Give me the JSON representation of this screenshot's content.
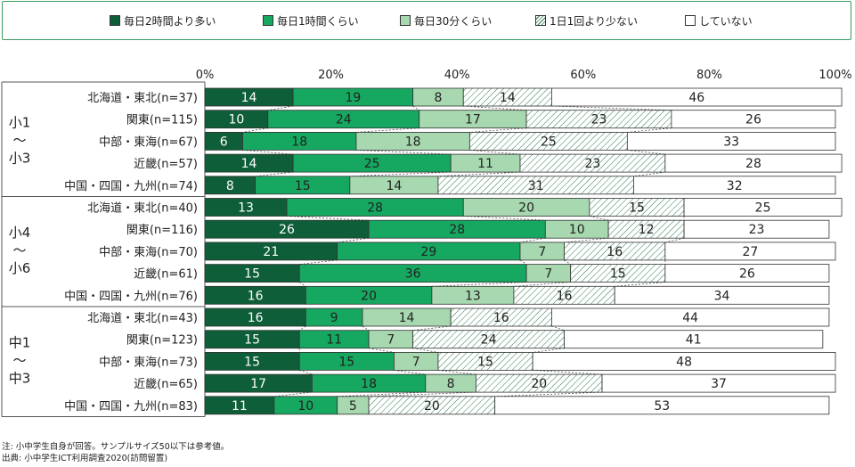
{
  "legend": [
    {
      "label": "毎日2時間より多い",
      "color": "#0f5e3a",
      "pattern": "solid"
    },
    {
      "label": "毎日1時間くらい",
      "color": "#16a860",
      "pattern": "solid"
    },
    {
      "label": "毎日30分くらい",
      "color": "#a7d8b0",
      "pattern": "solid"
    },
    {
      "label": "1日1回より少ない",
      "color": "#ffffff",
      "pattern": "hatch"
    },
    {
      "label": "していない",
      "color": "#ffffff",
      "pattern": "solid"
    }
  ],
  "chart_data": {
    "type": "bar",
    "orientation": "horizontal",
    "stacked": true,
    "xlim": [
      0,
      100
    ],
    "x_ticks": [
      "0%",
      "20%",
      "40%",
      "60%",
      "80%",
      "100%"
    ],
    "categories": [
      "北海道・東北(n=37)",
      "関東(n=115)",
      "中部・東海(n=67)",
      "近畿(n=57)",
      "中国・四国・九州(n=74)",
      "北海道・東北(n=40)",
      "関東(n=116)",
      "中部・東海(n=70)",
      "近畿(n=61)",
      "中国・四国・九州(n=76)",
      "北海道・東北(n=43)",
      "関東(n=123)",
      "中部・東海(n=73)",
      "近畿(n=65)",
      "中国・四国・九州(n=83)"
    ],
    "groups": [
      {
        "label": [
          "小1",
          "〜",
          "小3"
        ],
        "rows": 5
      },
      {
        "label": [
          "小4",
          "〜",
          "小6"
        ],
        "rows": 5
      },
      {
        "label": [
          "中1",
          "〜",
          "中3"
        ],
        "rows": 5
      }
    ],
    "series": [
      {
        "name": "毎日2時間より多い",
        "values": [
          14,
          10,
          6,
          14,
          8,
          13,
          26,
          21,
          15,
          16,
          16,
          15,
          15,
          17,
          11
        ]
      },
      {
        "name": "毎日1時間くらい",
        "values": [
          19,
          24,
          18,
          25,
          15,
          28,
          28,
          29,
          36,
          20,
          9,
          11,
          15,
          18,
          10
        ]
      },
      {
        "name": "毎日30分くらい",
        "values": [
          8,
          17,
          18,
          11,
          14,
          20,
          10,
          7,
          7,
          13,
          14,
          7,
          7,
          8,
          5
        ]
      },
      {
        "name": "1日1回より少ない",
        "values": [
          14,
          23,
          25,
          23,
          31,
          15,
          12,
          16,
          15,
          16,
          16,
          24,
          15,
          20,
          20
        ]
      },
      {
        "name": "していない",
        "values": [
          46,
          26,
          33,
          28,
          32,
          25,
          23,
          27,
          26,
          34,
          44,
          41,
          48,
          37,
          53
        ]
      }
    ]
  },
  "notes": {
    "line1": "注: 小中学生自身が回答。サンプルサイズ50以下は参考値。",
    "line2": "出典: 小中学生ICT利用調査2020(訪問留置)"
  }
}
